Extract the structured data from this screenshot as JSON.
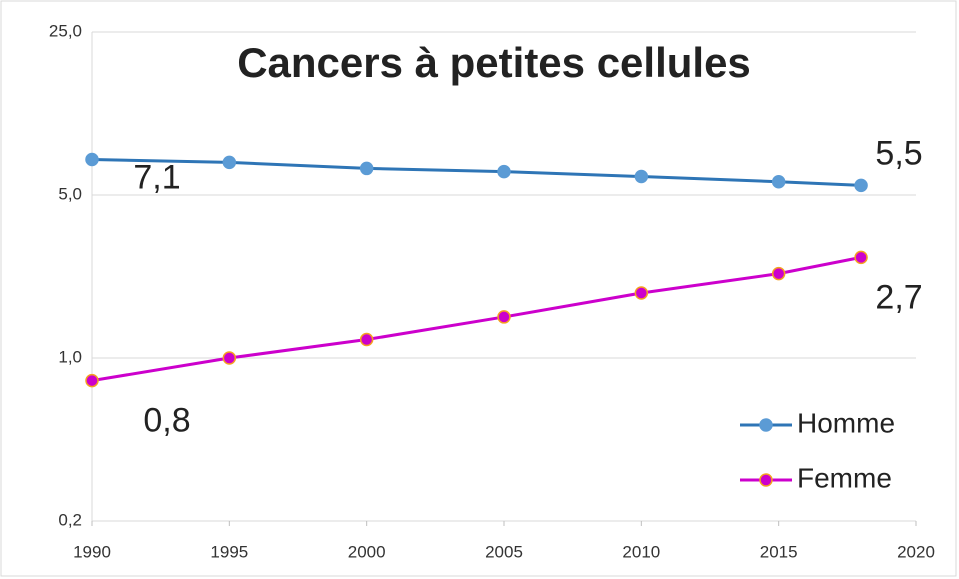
{
  "chart_data": {
    "type": "line",
    "title": "Cancers à petites cellules",
    "x": [
      1990,
      1995,
      2000,
      2005,
      2010,
      2015,
      2018
    ],
    "series": [
      {
        "name": "Homme",
        "color": "#2e75b6",
        "marker_color": "#5b9bd5",
        "values": [
          7.1,
          6.9,
          6.5,
          6.3,
          6.0,
          5.7,
          5.5
        ],
        "value_labels": [
          "7,1",
          null,
          null,
          null,
          null,
          null,
          "5,5"
        ]
      },
      {
        "name": "Femme",
        "color": "#cc00cc",
        "marker_color": "#cc00cc",
        "marker_edge": "#f4a020",
        "values": [
          0.8,
          1.0,
          1.2,
          1.5,
          1.9,
          2.3,
          2.7
        ],
        "value_labels": [
          "0,8",
          null,
          null,
          null,
          null,
          null,
          "2,7"
        ]
      }
    ],
    "xlim": [
      1990,
      2020
    ],
    "xticks": [
      1990,
      1995,
      2000,
      2005,
      2010,
      2015,
      2020
    ],
    "ylim": [
      0.2,
      25
    ],
    "log_y": true,
    "yticks": [
      {
        "value": 0.2,
        "label": "0,2"
      },
      {
        "value": 1,
        "label": "1,0"
      },
      {
        "value": 5,
        "label": "5,0"
      },
      {
        "value": 25,
        "label": "25,0"
      }
    ],
    "grid": true,
    "legend": "lower right",
    "title_color": "#7030a0"
  }
}
